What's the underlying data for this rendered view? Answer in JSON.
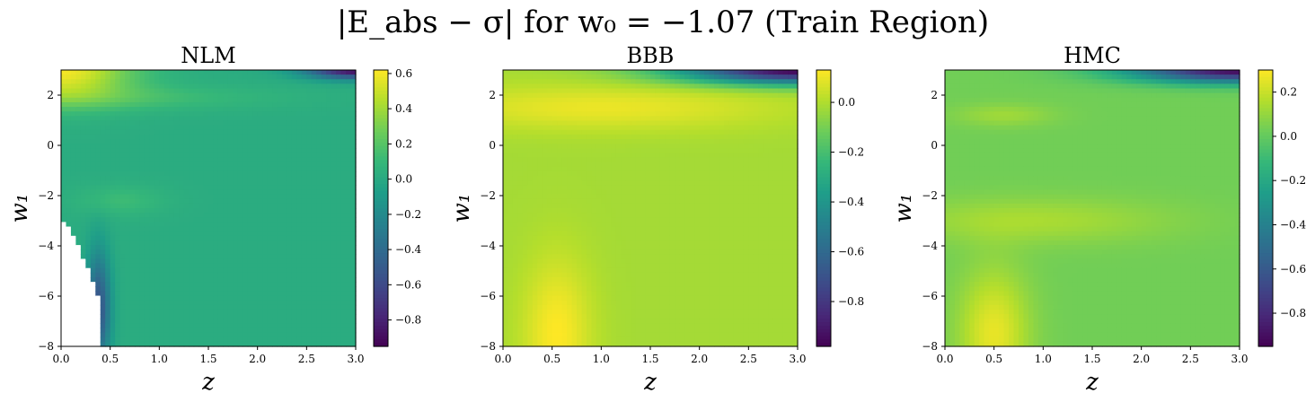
{
  "figure": {
    "title": "|E_abs − σ| for w₀ = −1.07 (Train Region)"
  },
  "chart_data": [
    {
      "type": "heatmap",
      "title": "NLM",
      "xlabel": "z",
      "ylabel": "w₁",
      "xlim": [
        0,
        3
      ],
      "ylim": [
        -8,
        3
      ],
      "x_ticks": [
        "0.0",
        "0.5",
        "1.0",
        "1.5",
        "2.0",
        "2.5",
        "3.0"
      ],
      "y_ticks": [
        "−8",
        "−6",
        "−4",
        "−2",
        "0",
        "2"
      ],
      "colorbar": {
        "min": -0.95,
        "max": 0.62,
        "ticks": [
          "−0.8",
          "−0.6",
          "−0.4",
          "−0.2",
          "0.0",
          "0.2",
          "0.4",
          "0.6"
        ],
        "tick_values": [
          -0.8,
          -0.6,
          -0.4,
          -0.2,
          0.0,
          0.2,
          0.4,
          0.6
        ]
      },
      "colormap": "viridis",
      "background_value": 0.02,
      "features": [
        {
          "name": "top-left high",
          "z_center": 0.0,
          "w1_center": 3.0,
          "z_spread": 0.7,
          "w1_spread": 1.2,
          "value": 0.6
        },
        {
          "name": "top-right low",
          "z_center": 3.0,
          "w1_center": 3.0,
          "z_spread": 0.5,
          "w1_spread": 0.35,
          "value": -0.9
        },
        {
          "name": "upper band",
          "z_center": 0.5,
          "w1_center": 1.9,
          "z_spread": 1.6,
          "w1_spread": 0.5,
          "value": 0.14
        },
        {
          "name": "mid bump",
          "z_center": 0.6,
          "w1_center": -2.2,
          "z_spread": 0.45,
          "w1_spread": 0.6,
          "value": 0.12
        },
        {
          "name": "left edge low",
          "z_center": 0.38,
          "w1_center": -6.5,
          "z_spread": 0.12,
          "w1_spread": 2.2,
          "value": -0.55
        }
      ],
      "masked_region": {
        "description": "white (undefined) region bottom-left",
        "z_max_at_bottom": 0.38,
        "w1_top": -3.0
      }
    },
    {
      "type": "heatmap",
      "title": "BBB",
      "xlabel": "z",
      "ylabel": "w₁",
      "xlim": [
        0,
        3
      ],
      "ylim": [
        -8,
        3
      ],
      "x_ticks": [
        "0.0",
        "0.5",
        "1.0",
        "1.5",
        "2.0",
        "2.5",
        "3.0"
      ],
      "y_ticks": [
        "−8",
        "−6",
        "−4",
        "−2",
        "0",
        "2"
      ],
      "colorbar": {
        "min": -0.98,
        "max": 0.13,
        "ticks": [
          "−0.8",
          "−0.6",
          "−0.4",
          "−0.2",
          "0.0"
        ],
        "tick_values": [
          -0.8,
          -0.6,
          -0.4,
          -0.2,
          0.0
        ]
      },
      "colormap": "viridis",
      "background_value": -0.02,
      "features": [
        {
          "name": "top-right low",
          "z_center": 3.0,
          "w1_center": 3.0,
          "z_spread": 1.2,
          "w1_spread": 0.55,
          "value": -0.97
        },
        {
          "name": "upper band high",
          "z_center": 1.0,
          "w1_center": 1.5,
          "z_spread": 1.8,
          "w1_spread": 0.9,
          "value": 0.1
        },
        {
          "name": "bottom-left high",
          "z_center": 0.55,
          "w1_center": -7.5,
          "z_spread": 0.35,
          "w1_spread": 3.0,
          "value": 0.13
        }
      ]
    },
    {
      "type": "heatmap",
      "title": "HMC",
      "xlabel": "z",
      "ylabel": "w₁",
      "xlim": [
        0,
        3
      ],
      "ylim": [
        -8,
        3
      ],
      "x_ticks": [
        "0.0",
        "0.5",
        "1.0",
        "1.5",
        "2.0",
        "2.5",
        "3.0"
      ],
      "y_ticks": [
        "−8",
        "−6",
        "−4",
        "−2",
        "0",
        "2"
      ],
      "colorbar": {
        "min": -0.95,
        "max": 0.3,
        "ticks": [
          "−0.8",
          "−0.6",
          "−0.4",
          "−0.2",
          "0.0",
          "0.2"
        ],
        "tick_values": [
          -0.8,
          -0.6,
          -0.4,
          -0.2,
          0.0,
          0.2
        ]
      },
      "colormap": "viridis",
      "background_value": 0.03,
      "features": [
        {
          "name": "top-right low",
          "z_center": 3.0,
          "w1_center": 3.0,
          "z_spread": 1.1,
          "w1_spread": 0.5,
          "value": -0.92
        },
        {
          "name": "upper small bump",
          "z_center": 0.6,
          "w1_center": 1.2,
          "z_spread": 0.5,
          "w1_spread": 0.45,
          "value": 0.12
        },
        {
          "name": "wedge mid",
          "z_center": 0.9,
          "w1_center": -3.0,
          "z_spread": 1.4,
          "w1_spread": 0.9,
          "value": 0.14
        },
        {
          "name": "bottom-left high",
          "z_center": 0.5,
          "w1_center": -7.5,
          "z_spread": 0.35,
          "w1_spread": 2.5,
          "value": 0.26
        }
      ]
    }
  ]
}
